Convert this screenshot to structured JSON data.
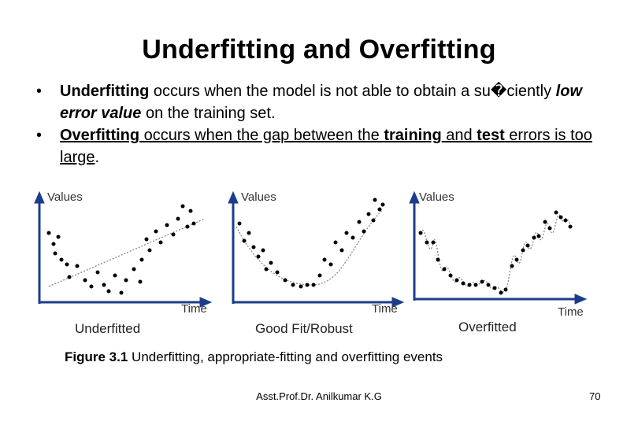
{
  "slide": {
    "title": "Underfitting and Overfitting",
    "bullet_char": "•",
    "bullet1": {
      "term": "Underfitting",
      "pre": " occurs when the model is not able to obtain a su�ciently ",
      "emph": "low error value",
      "post": " on the training set."
    },
    "bullet2": {
      "term": "Overfitting",
      "mid1": " occurs when the gap between the ",
      "training": "training",
      "mid2": " and ",
      "test": "test",
      "end": " errors is too large",
      "period": "."
    },
    "figure_caption_bold": "Figure 3.1",
    "figure_caption_text": " Underfitting, appropriate-fitting and overfitting events",
    "footer": "Asst.Prof.Dr. Anilkumar K.G",
    "page_number": "70"
  },
  "figure": {
    "axis_y_label": "Values",
    "axis_x_label": "Time",
    "panels": [
      {
        "caption": "Underfitted",
        "fit": "linear"
      },
      {
        "caption": "Good Fit/Robust",
        "fit": "smooth curve"
      },
      {
        "caption": "Overfitted",
        "fit": "curve through every point"
      }
    ],
    "colors": {
      "axis": "#1c3d8c",
      "points": "#000000",
      "fit_line": "#888888"
    }
  }
}
